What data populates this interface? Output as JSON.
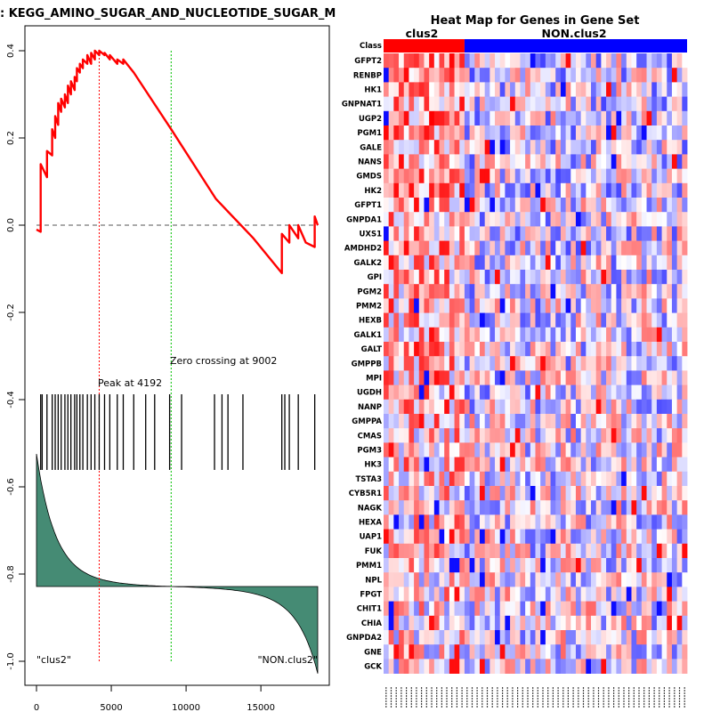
{
  "chart_data": [
    {
      "type": "line",
      "title": "Enrichment plot: KEGG_AMINO_SUGAR_AND_NUCLEOTIDE_SUGAR_METABOLISM",
      "title_visible": ": KEGG_AMINO_SUGAR_AND_NUCLEOTIDE_SUGAR_M",
      "xlabel": "",
      "ylabel": "",
      "xlim": [
        -700,
        19500
      ],
      "ylim": [
        -1.0,
        0.43
      ],
      "x_ticks": [
        0,
        5000,
        10000,
        15000
      ],
      "x_tick_labels": [
        "0",
        "5000",
        "10000",
        "15000"
      ],
      "y_ticks": [
        0.4,
        0.2,
        0.0,
        -0.2,
        -0.4,
        -0.6,
        -0.8,
        -1.0
      ],
      "y_tick_labels": [
        "0.4",
        "0.2",
        "0.0",
        "-0.2",
        "-0.4",
        "-0.6",
        "-0.8",
        "-1.0"
      ],
      "n_genes": 18800,
      "peak": {
        "x": 4192,
        "label": "Peak at 4192"
      },
      "zero_crossing": {
        "x": 9002,
        "label": "Zero crossing at 9002"
      },
      "hit_positions": [
        280,
        380,
        700,
        1050,
        1250,
        1450,
        1650,
        1900,
        2100,
        2300,
        2550,
        2700,
        2900,
        3100,
        3400,
        3650,
        3900,
        4192,
        4550,
        4900,
        5400,
        5800,
        6500,
        7300,
        7900,
        8900,
        9700,
        11900,
        12400,
        12800,
        13800,
        16400,
        16600,
        16900,
        17500,
        18600
      ],
      "es_curve": {
        "x": [
          0,
          280,
          280,
          700,
          700,
          1050,
          1050,
          1250,
          1250,
          1450,
          1450,
          1650,
          1650,
          1900,
          1900,
          2100,
          2100,
          2300,
          2300,
          2550,
          2550,
          2700,
          2700,
          2900,
          2900,
          3100,
          3100,
          3400,
          3400,
          3650,
          3650,
          3900,
          3900,
          4192,
          4192,
          4550,
          4550,
          4900,
          4900,
          5400,
          5400,
          5800,
          5800,
          6500,
          9002,
          12000,
          14500,
          16400,
          16400,
          16900,
          16900,
          17500,
          17500,
          18000,
          18600,
          18600,
          18800
        ],
        "y": [
          -0.01,
          -0.015,
          0.14,
          0.11,
          0.17,
          0.16,
          0.22,
          0.2,
          0.25,
          0.23,
          0.28,
          0.26,
          0.29,
          0.27,
          0.3,
          0.28,
          0.32,
          0.3,
          0.33,
          0.31,
          0.34,
          0.33,
          0.36,
          0.35,
          0.37,
          0.36,
          0.38,
          0.37,
          0.39,
          0.37,
          0.395,
          0.38,
          0.4,
          0.39,
          0.4,
          0.39,
          0.395,
          0.38,
          0.39,
          0.37,
          0.38,
          0.37,
          0.38,
          0.35,
          0.22,
          0.06,
          -0.03,
          -0.11,
          -0.02,
          -0.04,
          0.0,
          -0.03,
          0.0,
          -0.04,
          -0.05,
          0.02,
          0.0
        ],
        "color": "#ff0000"
      },
      "baseline_y": 0.0,
      "ranked_metric": {
        "fill_color": "#458b74",
        "label_left": "\"clus2\"",
        "label_right": "\"NON.clus2\""
      },
      "peak_line_color": "#ff0000",
      "zero_line_color": "#00c000"
    },
    {
      "type": "heatmap",
      "title": "Heat Map for Genes in Gene Set",
      "class_row_label": "Class",
      "classes": [
        {
          "name": "clus2",
          "color": "#ff0000",
          "n_columns": 16
        },
        {
          "name": "NON.clus2",
          "color": "#0000ff",
          "n_columns": 44
        }
      ],
      "genes": [
        "GFPT2",
        "RENBP",
        "HK1",
        "GNPNAT1",
        "UGP2",
        "PGM1",
        "GALE",
        "NANS",
        "GMDS",
        "HK2",
        "GFPT1",
        "GNPDA1",
        "UXS1",
        "AMDHD2",
        "GALK2",
        "GPI",
        "PGM2",
        "PMM2",
        "HEXB",
        "GALK1",
        "GALT",
        "GMPPB",
        "MPI",
        "UGDH",
        "NANP",
        "GMPPA",
        "CMAS",
        "PGM3",
        "HK3",
        "TSTA3",
        "CYB5R1",
        "NAGK",
        "HEXA",
        "UAP1",
        "FUK",
        "PMM1",
        "NPL",
        "FPGT",
        "CHIT1",
        "CHIA",
        "GNPDA2",
        "GNE",
        "GCK"
      ],
      "color_low": "#0000ff",
      "color_mid": "#ffffff",
      "color_high": "#ff0000"
    }
  ]
}
